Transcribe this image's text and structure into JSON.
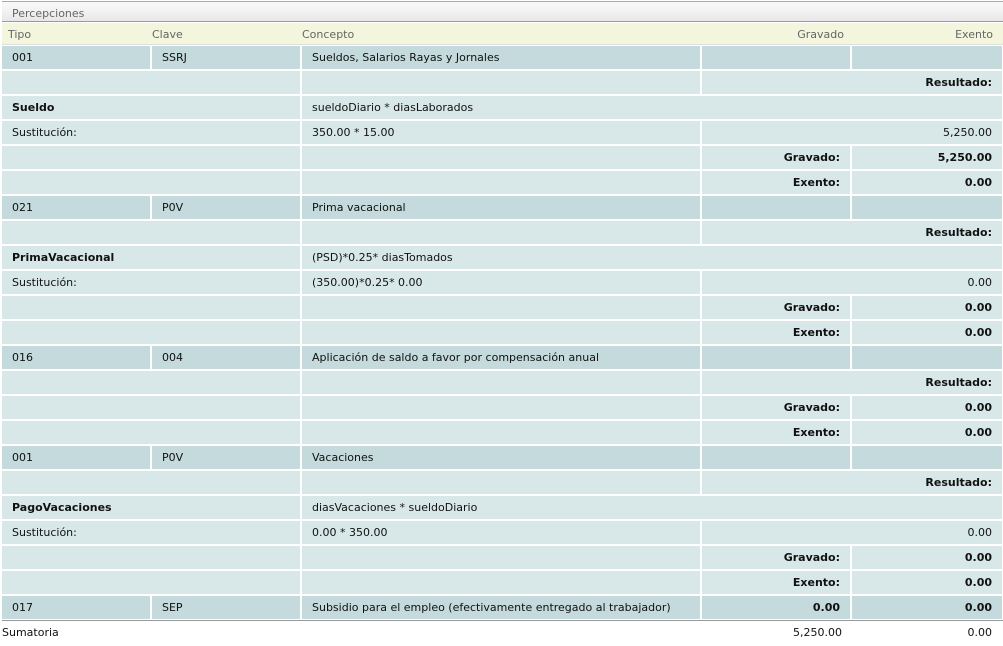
{
  "panel_title": "Percepciones",
  "columns": {
    "tipo": "Tipo",
    "clave": "Clave",
    "concepto": "Concepto",
    "gravado": "Gravado",
    "exento": "Exento"
  },
  "labels": {
    "resultado": "Resultado:",
    "gravado": "Gravado:",
    "exento": "Exento:",
    "sustitucion": "Sustitución:"
  },
  "colors": {
    "header_bg": "#f3f5dc",
    "row_dark": "#c4dadc",
    "row_light": "#d8e8e8"
  },
  "rows": [
    {
      "kind": "item",
      "tipo": "001",
      "clave": "SSRJ",
      "concepto": "Sueldos, Salarios Rayas y Jornales",
      "gravado": "",
      "exento": ""
    },
    {
      "kind": "resultado"
    },
    {
      "kind": "formula",
      "name": "Sueldo",
      "formula": "sueldoDiario * diasLaborados"
    },
    {
      "kind": "sust",
      "expr": "350.00 * 15.00",
      "value": "5,250.00"
    },
    {
      "kind": "gravado",
      "value": "5,250.00"
    },
    {
      "kind": "exento",
      "value": "0.00"
    },
    {
      "kind": "item",
      "tipo": "021",
      "clave": "P0V",
      "concepto": "Prima vacacional",
      "gravado": "",
      "exento": ""
    },
    {
      "kind": "resultado"
    },
    {
      "kind": "formula",
      "name": "PrimaVacacional",
      "formula": "(PSD)*0.25* diasTomados"
    },
    {
      "kind": "sust",
      "expr": "(350.00)*0.25* 0.00",
      "value": "0.00"
    },
    {
      "kind": "gravado",
      "value": "0.00"
    },
    {
      "kind": "exento",
      "value": "0.00"
    },
    {
      "kind": "item",
      "tipo": "016",
      "clave": "004",
      "concepto": "Aplicación de saldo a favor por compensación anual",
      "gravado": "",
      "exento": ""
    },
    {
      "kind": "resultado"
    },
    {
      "kind": "gravado",
      "value": "0.00"
    },
    {
      "kind": "exento",
      "value": "0.00"
    },
    {
      "kind": "item",
      "tipo": "001",
      "clave": "P0V",
      "concepto": "Vacaciones",
      "gravado": "",
      "exento": ""
    },
    {
      "kind": "resultado"
    },
    {
      "kind": "formula",
      "name": "PagoVacaciones",
      "formula": "diasVacaciones * sueldoDiario"
    },
    {
      "kind": "sust",
      "expr": "0.00 * 350.00",
      "value": "0.00"
    },
    {
      "kind": "gravado",
      "value": "0.00"
    },
    {
      "kind": "exento",
      "value": "0.00"
    },
    {
      "kind": "item",
      "tipo": "017",
      "clave": "SEP",
      "concepto": "Subsidio para el empleo (efectivamente entregado al trabajador)",
      "gravado": "0.00",
      "exento": "0.00"
    }
  ],
  "sumatoria": {
    "label": "Sumatoria",
    "gravado": "5,250.00",
    "exento": "0.00"
  }
}
